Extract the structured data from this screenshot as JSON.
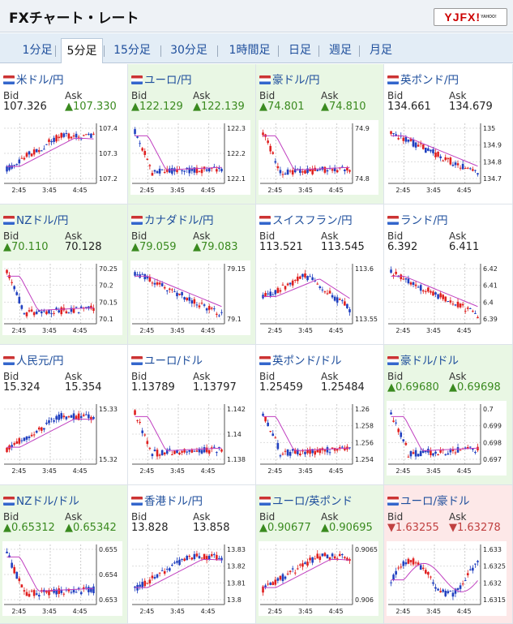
{
  "header": {
    "title": "FXチャート・レート",
    "logo_text": "YJFX!",
    "logo_sub": "YAHOO!"
  },
  "tabs": [
    "1分足",
    "5分足",
    "15分足",
    "30分足",
    "1時間足",
    "日足",
    "週足",
    "月足"
  ],
  "active_tab": "5分足",
  "bid_label": "Bid",
  "ask_label": "Ask",
  "up_arrow": "▲",
  "down_arrow": "▼",
  "colors": {
    "up_bg": "#e9f7e4",
    "down_bg": "#fde8e8",
    "up_text": "#3a8a1f",
    "down_text": "#c04040",
    "link": "#1e4e9c",
    "candle_up": "#e02020",
    "candle_down": "#2040c0",
    "ma": "#c040c0"
  },
  "pairs": [
    {
      "name": "米ドル/円",
      "bid": "107.326",
      "ask": "107.330",
      "trend": "none",
      "bid_arrow": "none",
      "ask_arrow": "up",
      "yticks": [
        "107.4",
        "107.3",
        "107.2"
      ],
      "xticks": [
        "2:45",
        "3:45",
        "4:45"
      ],
      "shape": "rise"
    },
    {
      "name": "ユーロ/円",
      "bid": "122.129",
      "ask": "122.139",
      "trend": "up",
      "bid_arrow": "up",
      "ask_arrow": "up",
      "yticks": [
        "122.3",
        "122.2",
        "122.1"
      ],
      "xticks": [
        "2:45",
        "3:45",
        "4:45"
      ],
      "shape": "dropflat"
    },
    {
      "name": "豪ドル/円",
      "bid": "74.801",
      "ask": "74.810",
      "trend": "up",
      "bid_arrow": "up",
      "ask_arrow": "up",
      "yticks": [
        "74.9",
        "74.8"
      ],
      "xticks": [
        "2:45",
        "3:45",
        "4:45"
      ],
      "shape": "dropflat"
    },
    {
      "name": "英ポンド/円",
      "bid": "134.661",
      "ask": "134.679",
      "trend": "none",
      "bid_arrow": "none",
      "ask_arrow": "none",
      "yticks": [
        "135",
        "134.9",
        "134.8",
        "134.7"
      ],
      "xticks": [
        "2:45",
        "3:45",
        "4:45"
      ],
      "shape": "drop"
    },
    {
      "name": "NZドル/円",
      "bid": "70.110",
      "ask": "70.128",
      "trend": "up",
      "bid_arrow": "up",
      "ask_arrow": "none",
      "yticks": [
        "70.25",
        "70.2",
        "70.15",
        "70.1"
      ],
      "xticks": [
        "2:45",
        "3:45",
        "4:45"
      ],
      "shape": "dropflat"
    },
    {
      "name": "カナダドル/円",
      "bid": "79.059",
      "ask": "79.083",
      "trend": "up",
      "bid_arrow": "up",
      "ask_arrow": "up",
      "yticks": [
        "79.15",
        "79.1"
      ],
      "xticks": [
        "2:45",
        "3:45",
        "4:45"
      ],
      "shape": "drop"
    },
    {
      "name": "スイスフラン/円",
      "bid": "113.521",
      "ask": "113.545",
      "trend": "none",
      "bid_arrow": "none",
      "ask_arrow": "none",
      "yticks": [
        "113.6",
        "113.55"
      ],
      "xticks": [
        "2:45",
        "3:45",
        "4:45"
      ],
      "shape": "humpdrop"
    },
    {
      "name": "ランド/円",
      "bid": "6.392",
      "ask": "6.411",
      "trend": "none",
      "bid_arrow": "none",
      "ask_arrow": "none",
      "yticks": [
        "6.42",
        "6.41",
        "6.4",
        "6.39"
      ],
      "xticks": [
        "2:45",
        "3:45",
        "4:45"
      ],
      "shape": "drop"
    },
    {
      "name": "人民元/円",
      "bid": "15.324",
      "ask": "15.354",
      "trend": "none",
      "bid_arrow": "none",
      "ask_arrow": "none",
      "yticks": [
        "15.33",
        "15.32"
      ],
      "xticks": [
        "2:45",
        "3:45",
        "4:45"
      ],
      "shape": "rise"
    },
    {
      "name": "ユーロ/ドル",
      "bid": "1.13789",
      "ask": "1.13797",
      "trend": "none",
      "bid_arrow": "none",
      "ask_arrow": "none",
      "yticks": [
        "1.142",
        "1.14",
        "1.138"
      ],
      "xticks": [
        "2:45",
        "3:45",
        "4:45"
      ],
      "shape": "dropflat"
    },
    {
      "name": "英ポンド/ドル",
      "bid": "1.25459",
      "ask": "1.25484",
      "trend": "none",
      "bid_arrow": "none",
      "ask_arrow": "none",
      "yticks": [
        "1.26",
        "1.258",
        "1.256",
        "1.254"
      ],
      "xticks": [
        "2:45",
        "3:45",
        "4:45"
      ],
      "shape": "dropflat"
    },
    {
      "name": "豪ドル/ドル",
      "bid": "0.69680",
      "ask": "0.69698",
      "trend": "up",
      "bid_arrow": "up",
      "ask_arrow": "up",
      "yticks": [
        "0.7",
        "0.699",
        "0.698",
        "0.697"
      ],
      "xticks": [
        "2:45",
        "3:45",
        "4:45"
      ],
      "shape": "dropflat"
    },
    {
      "name": "NZドル/ドル",
      "bid": "0.65312",
      "ask": "0.65342",
      "trend": "up",
      "bid_arrow": "up",
      "ask_arrow": "up",
      "yticks": [
        "0.655",
        "0.654",
        "0.653"
      ],
      "xticks": [
        "2:45",
        "3:45",
        "4:45"
      ],
      "shape": "dropflat"
    },
    {
      "name": "香港ドル/円",
      "bid": "13.828",
      "ask": "13.858",
      "trend": "none",
      "bid_arrow": "none",
      "ask_arrow": "none",
      "yticks": [
        "13.83",
        "13.82",
        "13.81",
        "13.8"
      ],
      "xticks": [
        "2:45",
        "3:45",
        "4:45"
      ],
      "shape": "rise"
    },
    {
      "name": "ユーロ/英ポンド",
      "bid": "0.90677",
      "ask": "0.90695",
      "trend": "up",
      "bid_arrow": "up",
      "ask_arrow": "up",
      "yticks": [
        "0.9065",
        "0.906"
      ],
      "xticks": [
        "2:45",
        "3:45",
        "4:45"
      ],
      "shape": "rise"
    },
    {
      "name": "ユーロ/豪ドル",
      "bid": "1.63255",
      "ask": "1.63278",
      "trend": "down",
      "bid_arrow": "down",
      "ask_arrow": "down",
      "yticks": [
        "1.633",
        "1.6325",
        "1.632",
        "1.6315"
      ],
      "xticks": [
        "2:45",
        "3:45",
        "4:45"
      ],
      "shape": "wave"
    }
  ]
}
